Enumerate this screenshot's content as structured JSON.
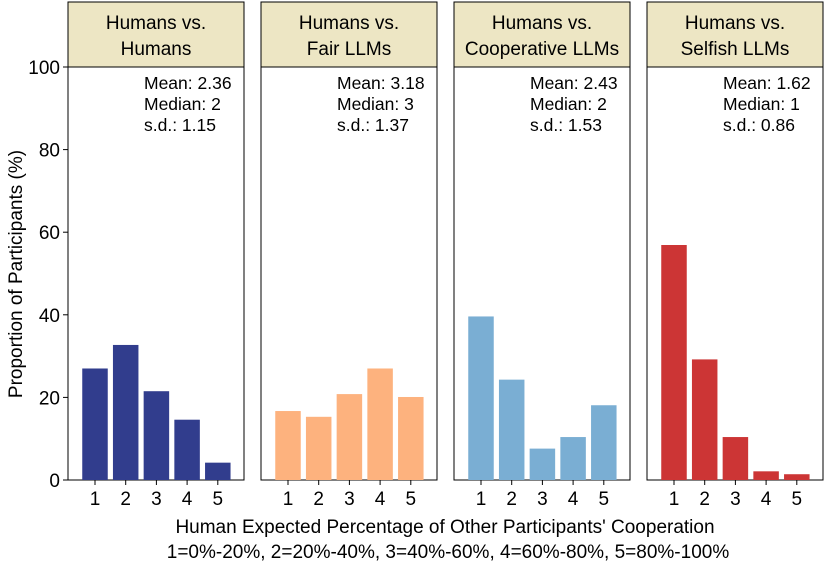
{
  "chart_data": {
    "type": "bar",
    "ylabel": "Proportion of Participants (%)",
    "xlabel_line1": "Human Expected Percentage of Other Participants' Cooperation",
    "xlabel_line2": "1=0%-20%, 2=20%-40%, 3=40%-60%, 4=60%-80%, 5=80%-100%",
    "ylim": [
      0,
      100
    ],
    "yticks": [
      "0",
      "20",
      "40",
      "60",
      "80",
      "100"
    ],
    "categories": [
      "1",
      "2",
      "3",
      "4",
      "5"
    ],
    "panel_header_color": "#ede6c4",
    "panels": [
      {
        "title_line1": "Humans vs.",
        "title_line2": "Humans",
        "color": "#313d8d",
        "values": [
          27.0,
          32.7,
          21.5,
          14.6,
          4.2
        ],
        "stats": [
          "Mean: 2.36",
          "Median: 2",
          "s.d.: 1.15"
        ]
      },
      {
        "title_line1": "Humans vs.",
        "title_line2": "Fair LLMs",
        "color": "#fdb27e",
        "values": [
          16.7,
          15.3,
          20.8,
          27.0,
          20.1
        ],
        "stats": [
          "Mean: 3.18",
          "Median: 3",
          "s.d.: 1.37"
        ]
      },
      {
        "title_line1": "Humans vs.",
        "title_line2": "Cooperative LLMs",
        "color": "#7aaed3",
        "values": [
          39.6,
          24.3,
          7.6,
          10.4,
          18.1
        ],
        "stats": [
          "Mean: 2.43",
          "Median: 2",
          "s.d.: 1.53"
        ]
      },
      {
        "title_line1": "Humans vs.",
        "title_line2": "Selfish LLMs",
        "color": "#cc3535",
        "values": [
          56.9,
          29.2,
          10.4,
          2.1,
          1.4
        ],
        "stats": [
          "Mean: 1.62",
          "Median: 1",
          "s.d.: 0.86"
        ]
      }
    ]
  }
}
